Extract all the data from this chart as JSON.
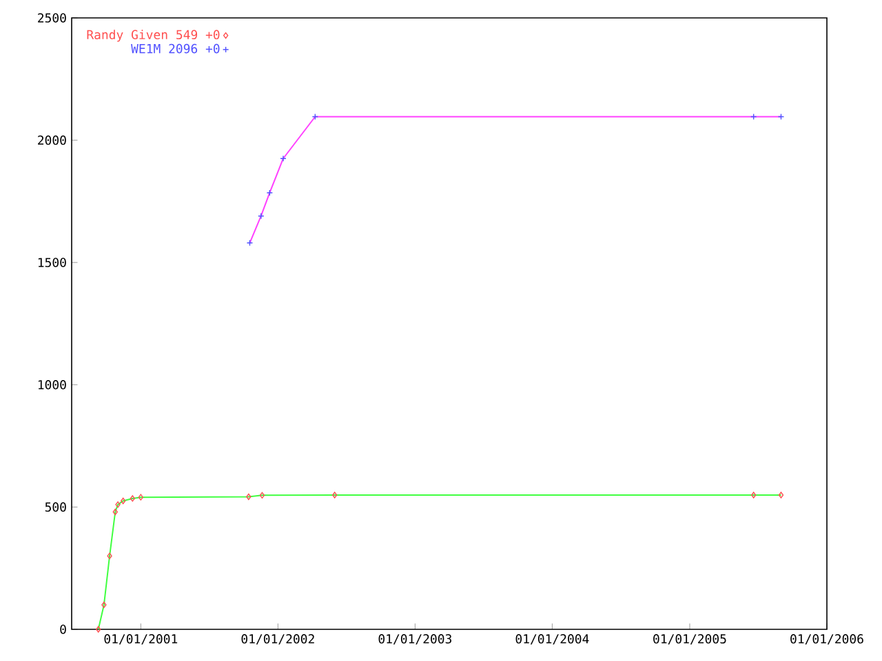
{
  "chart_data": {
    "type": "line",
    "legend": "top left",
    "xlim": [
      "2000-07-01",
      "2006-01-01"
    ],
    "xticks": [
      {
        "value": "2001-01-01",
        "label": "01/01/2001"
      },
      {
        "value": "2002-01-01",
        "label": "01/01/2002"
      },
      {
        "value": "2003-01-01",
        "label": "01/01/2003"
      },
      {
        "value": "2004-01-01",
        "label": "01/01/2004"
      },
      {
        "value": "2005-01-01",
        "label": "01/01/2005"
      },
      {
        "value": "2006-01-01",
        "label": "01/01/2006"
      }
    ],
    "ylim": [
      0,
      2500
    ],
    "yticks": [
      0,
      500,
      1000,
      1500,
      2000,
      2500
    ],
    "series": [
      {
        "name": "Randy Given 549 +0",
        "type": "scatter",
        "marker": "diamond",
        "color": "#ff5050",
        "x": [
          "2000-09-10",
          "2000-09-25",
          "2000-10-10",
          "2000-10-25",
          "2000-11-01",
          "2000-11-15",
          "2000-12-10",
          "2001-01-01",
          "2001-10-15",
          "2001-11-20",
          "2002-06-01",
          "2005-06-20",
          "2005-09-01"
        ],
        "values": [
          0,
          100,
          300,
          480,
          510,
          525,
          535,
          540,
          542,
          548,
          549,
          549,
          549
        ]
      },
      {
        "marker": "none",
        "color": "#40ff40",
        "x": [
          "2000-09-10",
          "2000-09-25",
          "2000-10-10",
          "2000-10-25",
          "2000-11-01",
          "2000-11-15",
          "2000-12-10",
          "2001-01-01",
          "2001-10-15",
          "2001-11-20",
          "2002-06-01",
          "2005-06-20",
          "2005-09-01"
        ],
        "values": [
          0,
          100,
          300,
          480,
          510,
          525,
          535,
          540,
          542,
          548,
          549,
          549,
          549
        ]
      },
      {
        "name": "WE1M 2096 +0",
        "type": "scatter",
        "marker": "cross",
        "color": "#5050ff",
        "x": [
          "2001-10-18",
          "2001-11-17",
          "2001-12-10",
          "2002-01-15",
          "2002-04-10",
          "2005-06-20",
          "2005-09-01"
        ],
        "values": [
          1580,
          1690,
          1785,
          1925,
          2096,
          2096,
          2096
        ]
      },
      {
        "marker": "none",
        "color": "#ff40ff",
        "x": [
          "2001-10-18",
          "2001-11-17",
          "2001-12-10",
          "2002-01-15",
          "2002-04-10",
          "2005-06-20",
          "2005-09-01"
        ],
        "values": [
          1580,
          1690,
          1785,
          1925,
          2096,
          2096,
          2096
        ]
      }
    ]
  }
}
